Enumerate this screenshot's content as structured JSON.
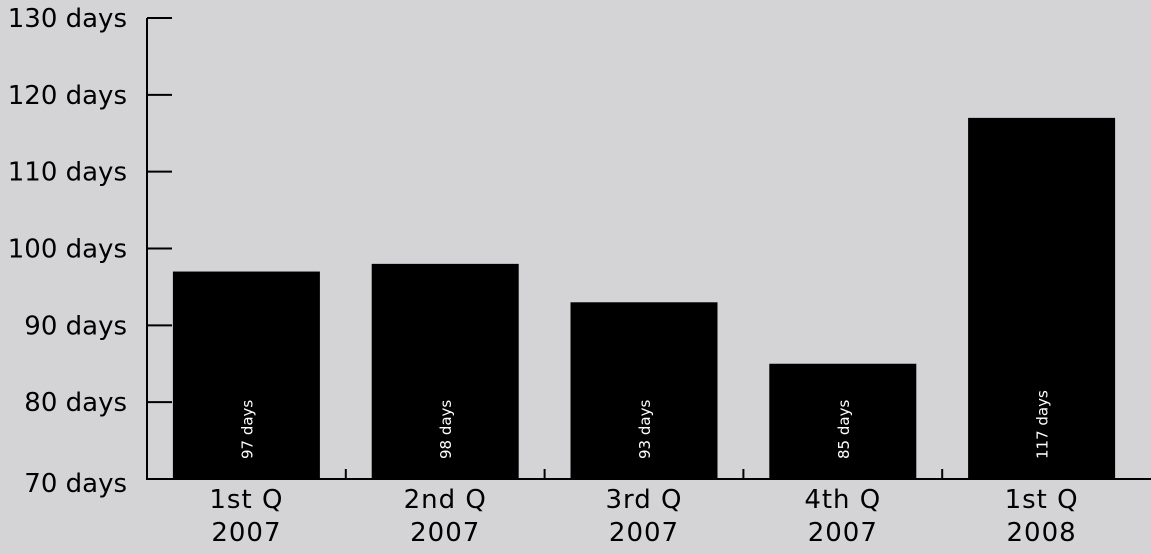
{
  "chart_data": {
    "type": "bar",
    "categories": [
      [
        "1st Q",
        "2007"
      ],
      [
        "2nd Q",
        "2007"
      ],
      [
        "3rd Q",
        "2007"
      ],
      [
        "4th Q",
        "2007"
      ],
      [
        "1st Q",
        "2008"
      ]
    ],
    "values": [
      97,
      98,
      93,
      85,
      117
    ],
    "value_labels": [
      "97 days",
      "98 days",
      "93 days",
      "85 days",
      "117 days"
    ],
    "yticks": [
      70,
      80,
      90,
      100,
      110,
      120,
      130
    ],
    "ytick_labels": [
      "70 days",
      "80 days",
      "90 days",
      "100 days",
      "110 days",
      "120 days",
      "130 days"
    ],
    "ylim": [
      70,
      130
    ],
    "title": "",
    "xlabel": "",
    "ylabel": "",
    "grid": false,
    "colors": {
      "bar": "#000000",
      "background": "#d4d4d6",
      "bar_label": "#ffffff"
    }
  }
}
